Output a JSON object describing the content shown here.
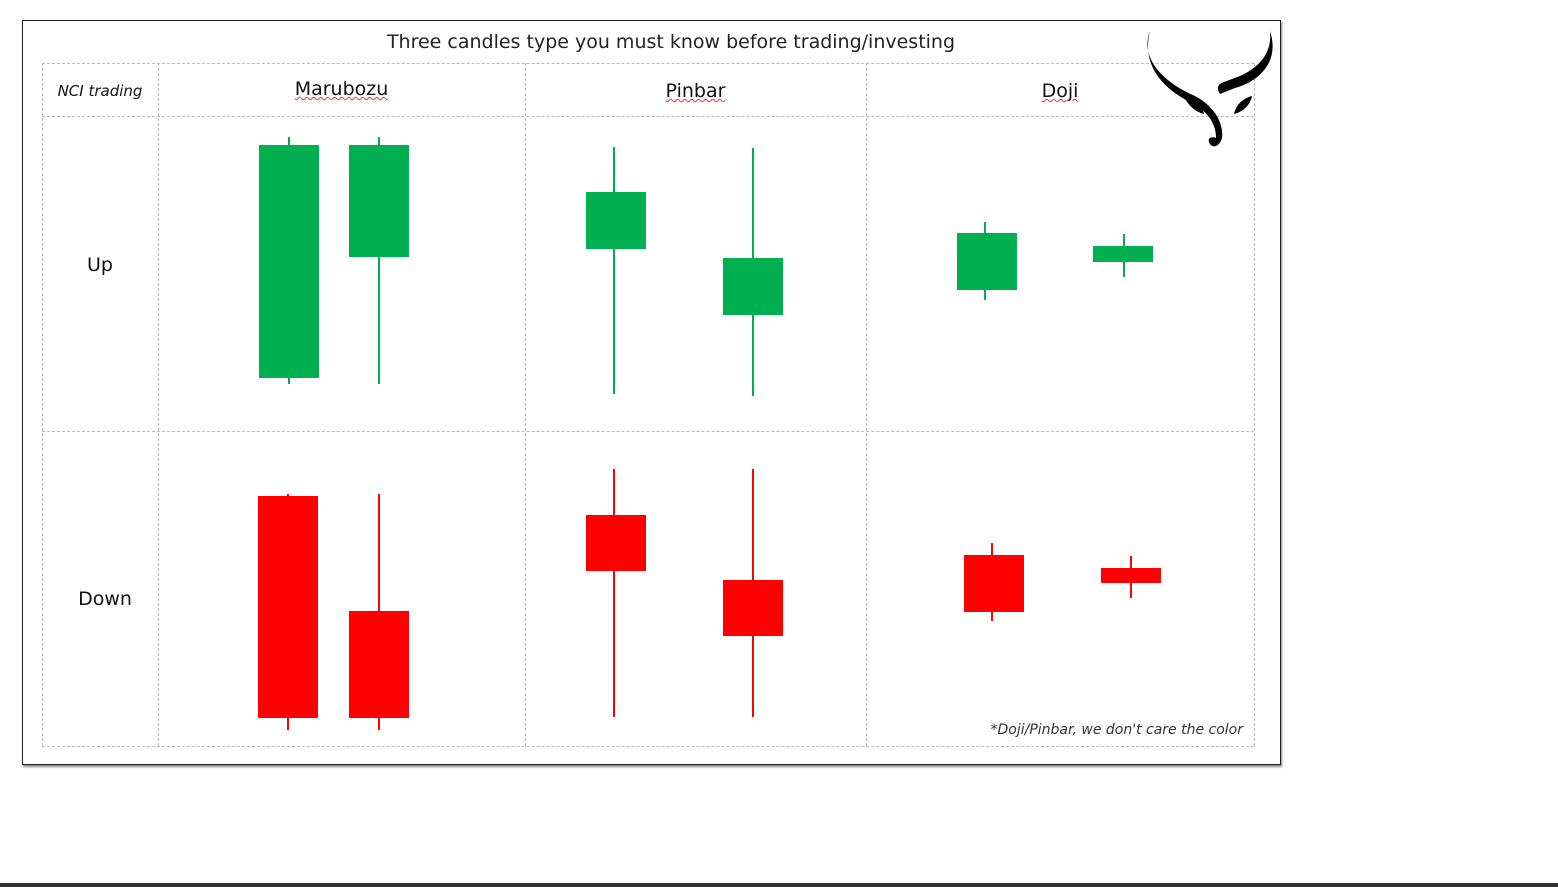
{
  "title": "Three candles type you must know before trading/investing",
  "corner_label": "NCI trading",
  "columns": [
    "Marubozu",
    "Pinbar",
    "Doji"
  ],
  "rows": [
    "Up",
    "Down"
  ],
  "footnote": "*Doji/Pinbar, we don't care the color",
  "logo": {
    "name": "bull-horns-logo",
    "color": "#000000"
  },
  "colors": {
    "up": "#00b050",
    "down": "#ff0000"
  }
}
